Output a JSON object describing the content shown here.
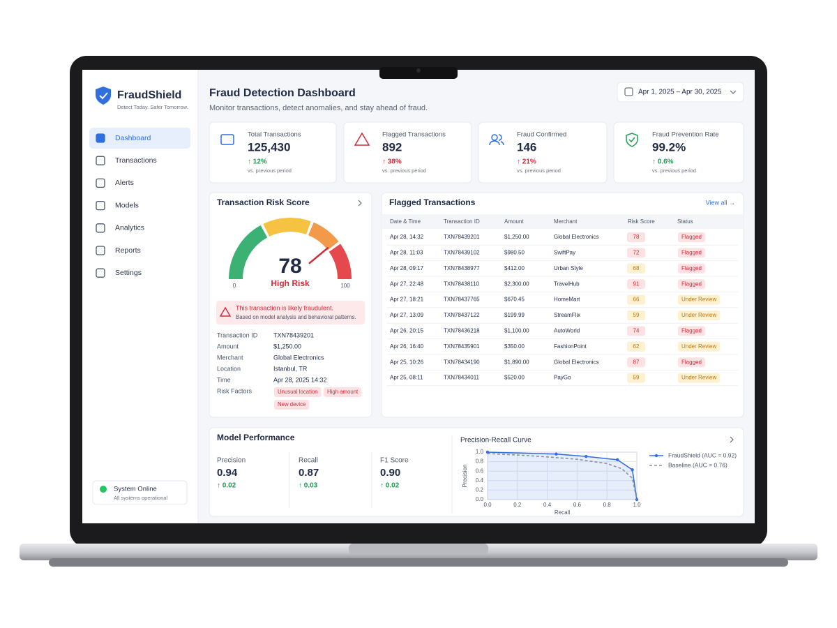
{
  "brand": {
    "name": "FraudShield",
    "tagline": "Detect Today. Safer Tomorrow."
  },
  "nav": {
    "items": [
      "Dashboard",
      "Transactions",
      "Alerts",
      "Models",
      "Analytics",
      "Reports",
      "Settings"
    ],
    "active": 0
  },
  "system_status": {
    "title": "System Online",
    "subtitle": "All systems operational"
  },
  "header": {
    "title": "Fraud Detection Dashboard",
    "subtitle": "Monitor transactions, detect anomalies, and stay ahead of fraud.",
    "date_range": "Apr 1, 2025 – Apr 30, 2025"
  },
  "kpis": [
    {
      "label": "Total Transactions",
      "value": "125,430",
      "change": "↑ 12%",
      "change_color": "#1f9d55",
      "note": "vs. previous period",
      "icon_color": "#2f6fe0"
    },
    {
      "label": "Flagged Transactions",
      "value": "892",
      "change": "↑ 38%",
      "change_color": "#d12b3a",
      "note": "vs. previous period",
      "icon_color": "#d12b3a"
    },
    {
      "label": "Fraud Confirmed",
      "value": "146",
      "change": "↑ 21%",
      "change_color": "#d12b3a",
      "note": "vs. previous period",
      "icon_color": "#2f6fe0"
    },
    {
      "label": "Fraud Prevention Rate",
      "value": "99.2%",
      "change": "↑ 0.6%",
      "change_color": "#1f9d55",
      "note": "vs. previous period",
      "icon_color": "#1f9d55"
    }
  ],
  "risk_card": {
    "title": "Transaction Risk Score",
    "score": 78,
    "min": 0,
    "max": 100,
    "level": "High Risk",
    "alert_title": "This transaction is likely fraudulent.",
    "alert_body": "Based on model analysis and behavioral patterns.",
    "details": [
      {
        "label": "Transaction ID",
        "value": "TXN78439201"
      },
      {
        "label": "Amount",
        "value": "$1,250.00"
      },
      {
        "label": "Merchant",
        "value": "Global Electronics"
      },
      {
        "label": "Location",
        "value": "Istanbul, TR"
      },
      {
        "label": "Time",
        "value": "Apr 28, 2025 14:32"
      }
    ],
    "factors_label": "Risk Factors",
    "factors": [
      "Unusual location",
      "High amount",
      "New device"
    ]
  },
  "flagged": {
    "title": "Flagged Transactions",
    "link": "View all →",
    "columns": [
      "Date & Time",
      "Transaction ID",
      "Amount",
      "Merchant",
      "Risk Score",
      "Status"
    ],
    "rows": [
      {
        "cells": [
          "Apr 28, 14:32",
          "TXN78439201",
          "$1,250.00",
          "Global Electronics"
        ],
        "risk": 78,
        "risk_color": "red",
        "status": "Flagged",
        "status_color": "red"
      },
      {
        "cells": [
          "Apr 28, 11:03",
          "TXN78439102",
          "$980.50",
          "SwiftPay"
        ],
        "risk": 72,
        "risk_color": "red",
        "status": "Flagged",
        "status_color": "red"
      },
      {
        "cells": [
          "Apr 28, 09:17",
          "TXN78438977",
          "$412.00",
          "Urban Style"
        ],
        "risk": 68,
        "risk_color": "amber",
        "status": "Flagged",
        "status_color": "red"
      },
      {
        "cells": [
          "Apr 27, 22:48",
          "TXN78438110",
          "$2,300.00",
          "TravelHub"
        ],
        "risk": 91,
        "risk_color": "red",
        "status": "Flagged",
        "status_color": "red"
      },
      {
        "cells": [
          "Apr 27, 18:21",
          "TXN78437765",
          "$670.45",
          "HomeMart"
        ],
        "risk": 66,
        "risk_color": "amber",
        "status": "Under Review",
        "status_color": "amber"
      },
      {
        "cells": [
          "Apr 27, 13:09",
          "TXN78437122",
          "$199.99",
          "StreamFlix"
        ],
        "risk": 59,
        "risk_color": "amber",
        "status": "Under Review",
        "status_color": "amber"
      },
      {
        "cells": [
          "Apr 26, 20:15",
          "TXN78436218",
          "$1,100.00",
          "AutoWorld"
        ],
        "risk": 74,
        "risk_color": "red",
        "status": "Flagged",
        "status_color": "red"
      },
      {
        "cells": [
          "Apr 26, 16:40",
          "TXN78435901",
          "$350.00",
          "FashionPoint"
        ],
        "risk": 62,
        "risk_color": "amber",
        "status": "Under Review",
        "status_color": "amber"
      },
      {
        "cells": [
          "Apr 25, 10:26",
          "TXN78434190",
          "$1,890.00",
          "Global Electronics"
        ],
        "risk": 87,
        "risk_color": "red",
        "status": "Flagged",
        "status_color": "red"
      },
      {
        "cells": [
          "Apr 25, 08:11",
          "TXN78434011",
          "$520.00",
          "PayGo"
        ],
        "risk": 59,
        "risk_color": "amber",
        "status": "Under Review",
        "status_color": "amber"
      }
    ]
  },
  "model_performance": {
    "title": "Model Performance",
    "metrics": [
      {
        "label": "Precision",
        "value": "0.94",
        "change": "↑ 0.02"
      },
      {
        "label": "Recall",
        "value": "0.87",
        "change": "↑ 0.03"
      },
      {
        "label": "F1 Score",
        "value": "0.90",
        "change": "↑ 0.02"
      }
    ]
  },
  "chart_data": {
    "type": "line",
    "title": "Precision-Recall Curve",
    "xlabel": "Recall",
    "ylabel": "Precision",
    "xlim": [
      0,
      1
    ],
    "ylim": [
      0,
      1
    ],
    "grid": true,
    "xticks": [
      {
        "value": 0,
        "label": "0.0"
      },
      {
        "value": 0.2,
        "label": "0.2"
      },
      {
        "value": 0.4,
        "label": "0.4"
      },
      {
        "value": 0.6,
        "label": "0.6"
      },
      {
        "value": 0.8,
        "label": "0.8"
      },
      {
        "value": 1,
        "label": "1.0"
      }
    ],
    "yticks": [
      {
        "value": 0,
        "label": "0.0"
      },
      {
        "value": 0.2,
        "label": "0.2"
      },
      {
        "value": 0.4,
        "label": "0.4"
      },
      {
        "value": 0.6,
        "label": "0.6"
      },
      {
        "value": 0.8,
        "label": "0.8"
      },
      {
        "value": 1,
        "label": "1.0"
      }
    ],
    "series": [
      {
        "name": "FraudShield (AUC = 0.92)",
        "color": "#2f6fe0",
        "fill": true,
        "markers": true,
        "dashed": false,
        "x": [
          0,
          0.46,
          0.66,
          0.87,
          0.97,
          1.0
        ],
        "values": [
          1.0,
          0.96,
          0.91,
          0.84,
          0.63,
          0
        ]
      },
      {
        "name": "Baseline (AUC = 0.76)",
        "color": "#8a8f98",
        "fill": false,
        "markers": false,
        "dashed": true,
        "x": [
          0,
          0.2,
          0.4,
          0.6,
          0.8,
          0.9,
          0.97,
          1.0
        ],
        "values": [
          0.97,
          0.94,
          0.9,
          0.85,
          0.76,
          0.65,
          0.45,
          0
        ]
      }
    ]
  }
}
